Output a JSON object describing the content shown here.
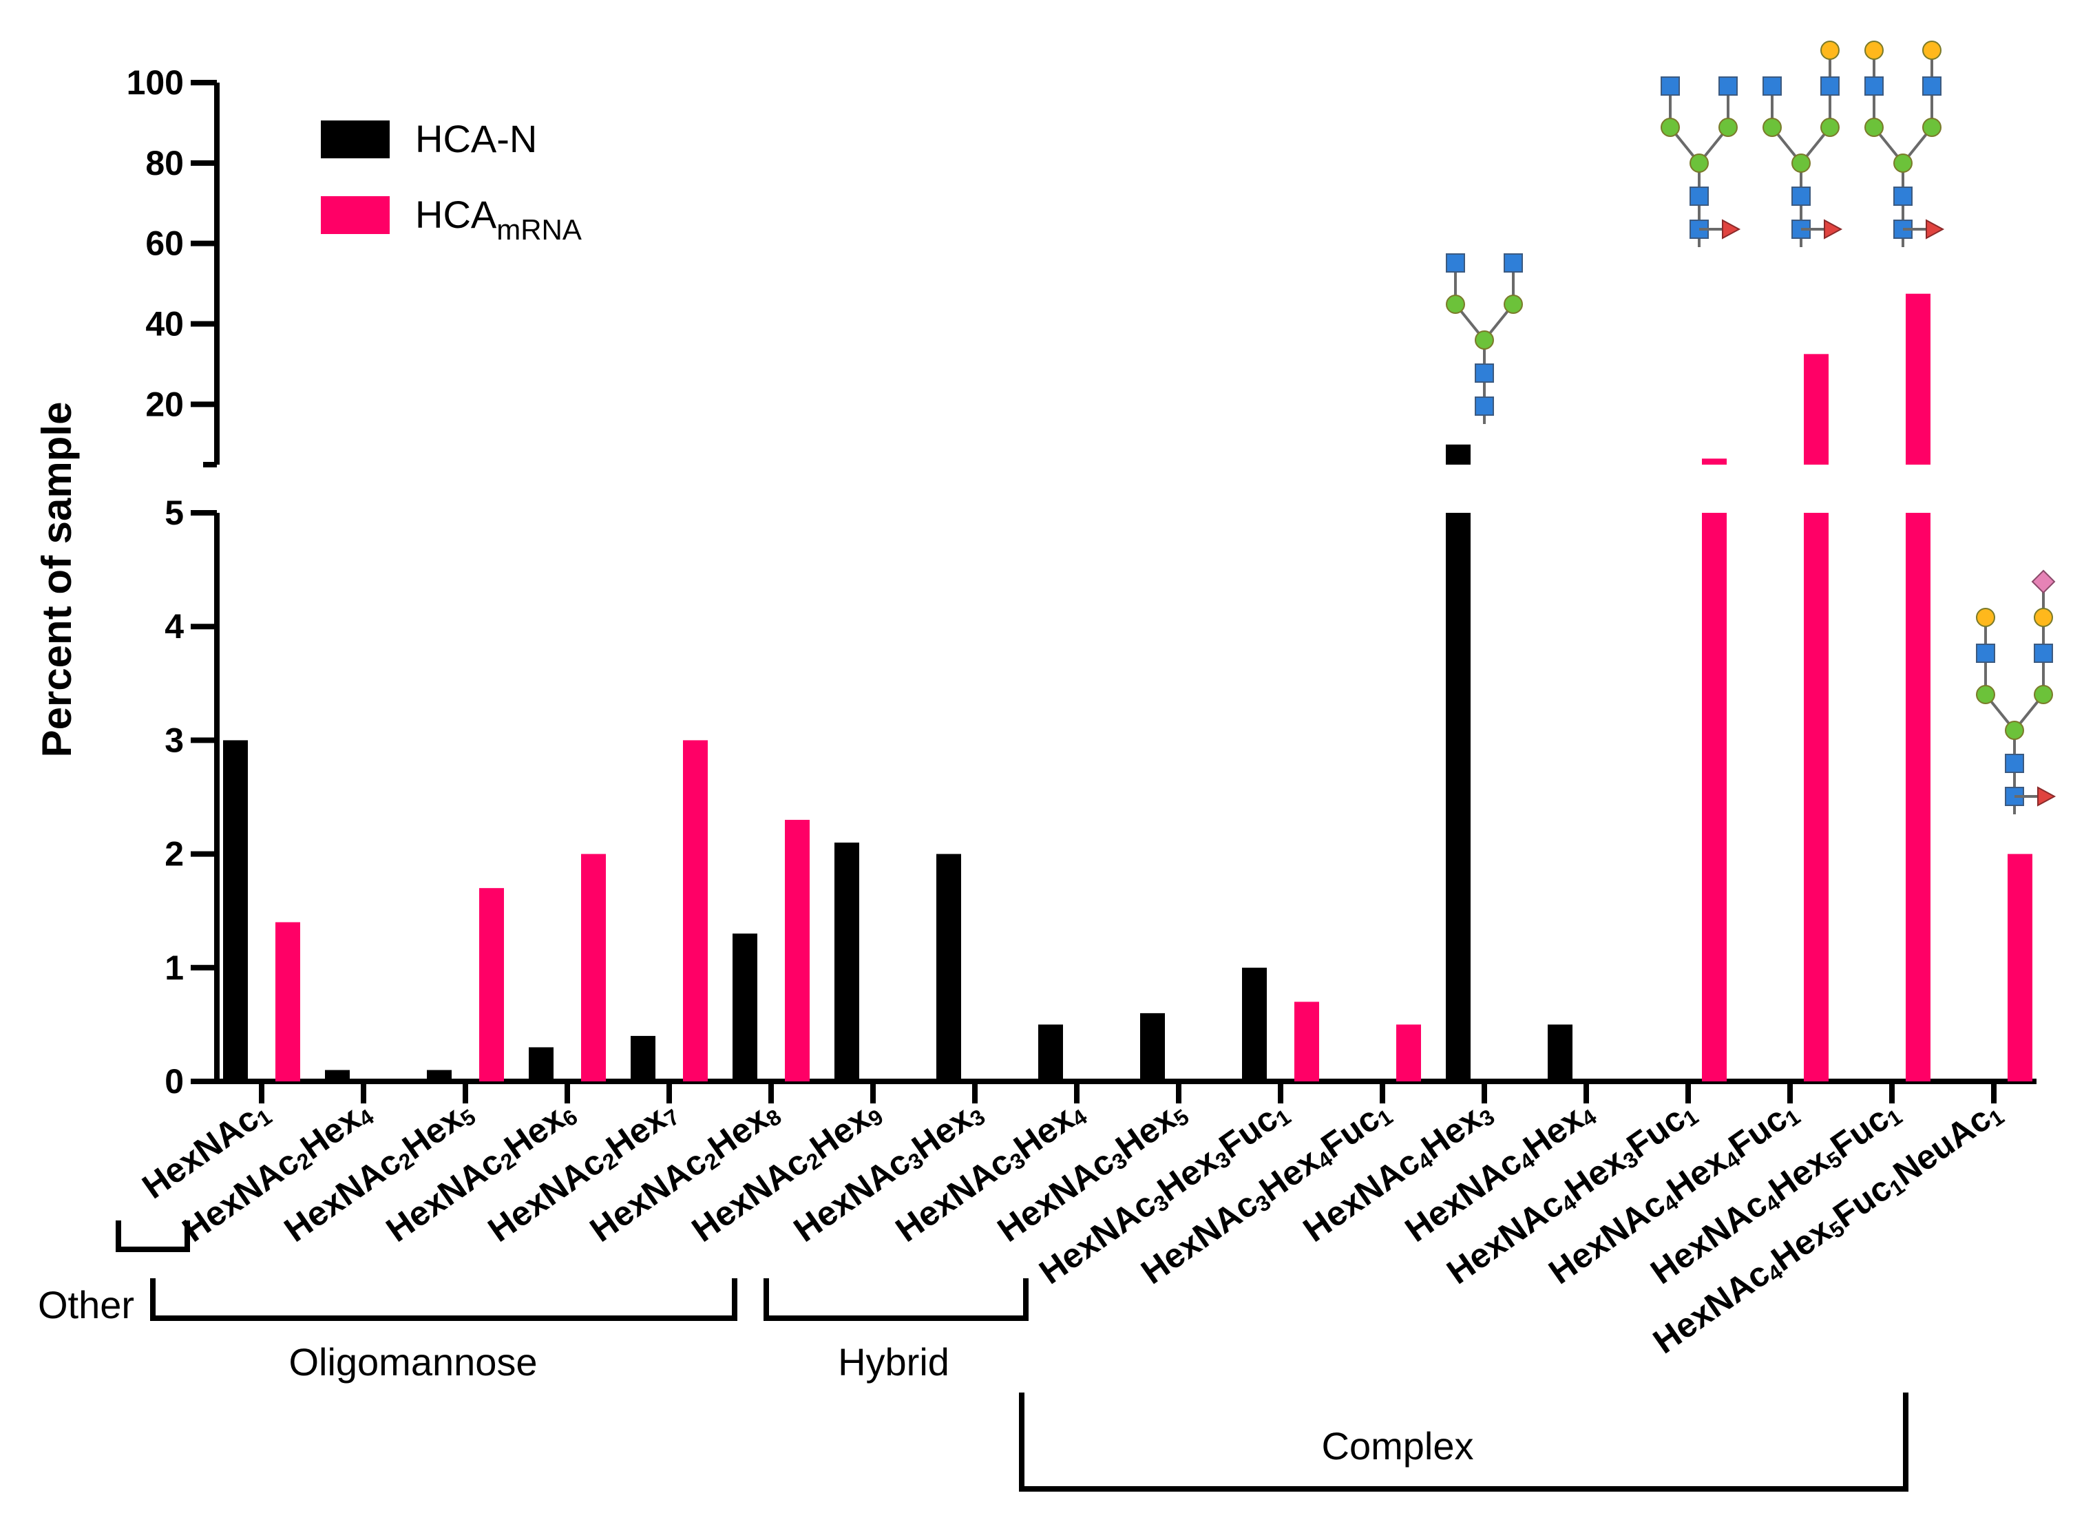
{
  "chart_data": {
    "type": "bar",
    "ylabel": "Percent of sample",
    "ylim_lower": [
      0,
      5
    ],
    "ylim_upper": [
      5,
      100
    ],
    "yticks_lower": [
      "0",
      "1",
      "2",
      "3",
      "4",
      "5"
    ],
    "yticks_upper": [
      "20",
      "40",
      "60",
      "80",
      "100"
    ],
    "legend": {
      "position": "top-left",
      "entries": [
        {
          "series": "HCA-N",
          "color": "#000000",
          "parts": [
            [
              "HCA-N",
              ""
            ]
          ]
        },
        {
          "series": "HCAmRNA",
          "color": "#ff0066",
          "parts": [
            [
              "HCA",
              ""
            ],
            [
              "mRNA",
              "sub"
            ]
          ]
        }
      ]
    },
    "categories": [
      {
        "name": "HexNAc1",
        "parts": [
          [
            "HexNAc",
            ""
          ],
          [
            "1",
            "sub"
          ]
        ]
      },
      {
        "name": "HexNAc2Hex4",
        "parts": [
          [
            "HexNAc",
            ""
          ],
          [
            "2",
            "sub"
          ],
          [
            "Hex",
            ""
          ],
          [
            "4",
            "sub"
          ]
        ]
      },
      {
        "name": "HexNAc2Hex5",
        "parts": [
          [
            "HexNAc",
            ""
          ],
          [
            "2",
            "sub"
          ],
          [
            "Hex",
            ""
          ],
          [
            "5",
            "sub"
          ]
        ]
      },
      {
        "name": "HexNAc2Hex6",
        "parts": [
          [
            "HexNAc",
            ""
          ],
          [
            "2",
            "sub"
          ],
          [
            "Hex",
            ""
          ],
          [
            "6",
            "sub"
          ]
        ]
      },
      {
        "name": "HexNAc2Hex7",
        "parts": [
          [
            "HexNAc",
            ""
          ],
          [
            "2",
            "sub"
          ],
          [
            "Hex",
            ""
          ],
          [
            "7",
            "sub"
          ]
        ]
      },
      {
        "name": "HexNAc2Hex8",
        "parts": [
          [
            "HexNAc",
            ""
          ],
          [
            "2",
            "sub"
          ],
          [
            "Hex",
            ""
          ],
          [
            "8",
            "sub"
          ]
        ]
      },
      {
        "name": "HexNAc2Hex9",
        "parts": [
          [
            "HexNAc",
            ""
          ],
          [
            "2",
            "sub"
          ],
          [
            "Hex",
            ""
          ],
          [
            "9",
            "sub"
          ]
        ]
      },
      {
        "name": "HexNAc3Hex3",
        "parts": [
          [
            "HexNAc",
            ""
          ],
          [
            "3",
            "sub"
          ],
          [
            "Hex",
            ""
          ],
          [
            "3",
            "sub"
          ]
        ]
      },
      {
        "name": "HexNAc3Hex4",
        "parts": [
          [
            "HexNAc",
            ""
          ],
          [
            "3",
            "sub"
          ],
          [
            "Hex",
            ""
          ],
          [
            "4",
            "sub"
          ]
        ]
      },
      {
        "name": "HexNAc3Hex5",
        "parts": [
          [
            "HexNAc",
            ""
          ],
          [
            "3",
            "sub"
          ],
          [
            "Hex",
            ""
          ],
          [
            "5",
            "sub"
          ]
        ]
      },
      {
        "name": "HexNAc3Hex3Fuc1",
        "parts": [
          [
            "HexNAc",
            ""
          ],
          [
            "3",
            "sub"
          ],
          [
            "Hex",
            ""
          ],
          [
            "3",
            "sub"
          ],
          [
            "Fuc",
            ""
          ],
          [
            "1",
            "sub"
          ]
        ]
      },
      {
        "name": "HexNAc3Hex4Fuc1",
        "parts": [
          [
            "HexNAc",
            ""
          ],
          [
            "3",
            "sub"
          ],
          [
            "Hex",
            ""
          ],
          [
            "4",
            "sub"
          ],
          [
            "Fuc",
            ""
          ],
          [
            "1",
            "sub"
          ]
        ]
      },
      {
        "name": "HexNAc4Hex3",
        "parts": [
          [
            "HexNAc",
            ""
          ],
          [
            "4",
            "sub"
          ],
          [
            "Hex",
            ""
          ],
          [
            "3",
            "sub"
          ]
        ]
      },
      {
        "name": "HexNAc4Hex4",
        "parts": [
          [
            "HexNAc",
            ""
          ],
          [
            "4",
            "sub"
          ],
          [
            "Hex",
            ""
          ],
          [
            "4",
            "sub"
          ]
        ]
      },
      {
        "name": "HexNAc4Hex3Fuc1",
        "parts": [
          [
            "HexNAc",
            ""
          ],
          [
            "4",
            "sub"
          ],
          [
            "Hex",
            ""
          ],
          [
            "3",
            "sub"
          ],
          [
            "Fuc",
            ""
          ],
          [
            "1",
            "sub"
          ]
        ]
      },
      {
        "name": "HexNAc4Hex4Fuc1",
        "parts": [
          [
            "HexNAc",
            ""
          ],
          [
            "4",
            "sub"
          ],
          [
            "Hex",
            ""
          ],
          [
            "4",
            "sub"
          ],
          [
            "Fuc",
            ""
          ],
          [
            "1",
            "sub"
          ]
        ]
      },
      {
        "name": "HexNAc4Hex5Fuc1",
        "parts": [
          [
            "HexNAc",
            ""
          ],
          [
            "4",
            "sub"
          ],
          [
            "Hex",
            ""
          ],
          [
            "5",
            "sub"
          ],
          [
            "Fuc",
            ""
          ],
          [
            "1",
            "sub"
          ]
        ]
      },
      {
        "name": "HexNAc4Hex5Fuc1NeuAc1",
        "parts": [
          [
            "HexNAc",
            ""
          ],
          [
            "4",
            "sub"
          ],
          [
            "Hex",
            ""
          ],
          [
            "5",
            "sub"
          ],
          [
            "Fuc",
            ""
          ],
          [
            "1",
            "sub"
          ],
          [
            "NeuAc",
            ""
          ],
          [
            "1",
            "sub"
          ]
        ]
      }
    ],
    "series": [
      {
        "name": "HCA-N",
        "color": "#000000",
        "values": [
          3.0,
          0.1,
          0.1,
          0.3,
          0.4,
          1.3,
          2.1,
          2.0,
          0.5,
          0.6,
          1.0,
          0,
          10,
          0.5,
          0,
          0,
          0,
          0
        ]
      },
      {
        "name": "HCAmRNA",
        "color": "#ff0066",
        "values": [
          1.4,
          0,
          1.7,
          2.0,
          3.0,
          2.3,
          0,
          0,
          0,
          0,
          0.7,
          0.5,
          0,
          0,
          6.5,
          32.5,
          47.5,
          2.0
        ]
      }
    ],
    "groups": [
      {
        "label": "Other",
        "from": 0,
        "to": 0
      },
      {
        "label": "Oligomannose",
        "from": 1,
        "to": 5
      },
      {
        "label": "Hybrid",
        "from": 6,
        "to": 7
      },
      {
        "label": "Complex",
        "from": 8,
        "to": 17
      }
    ],
    "glycan_annotations": [
      {
        "category": "HexNAc4Hex3",
        "structure": "biantennary"
      },
      {
        "category": "HexNAc4Hex3Fuc1",
        "structure": "biantennary-core-fucose"
      },
      {
        "category": "HexNAc4Hex4Fuc1",
        "structure": "biantennary-core-fucose-1-galactose"
      },
      {
        "category": "HexNAc4Hex5Fuc1",
        "structure": "biantennary-core-fucose-2-galactose"
      },
      {
        "category": "HexNAc4Hex5Fuc1NeuAc1",
        "structure": "biantennary-core-fucose-2-galactose-1-sialic-acid"
      }
    ],
    "symbol_colors": {
      "HexNAc": "#2f7fd8",
      "Man": "#6cc23a",
      "Gal": "#ffb81c",
      "Fuc": "#e0433f",
      "NeuAc": "#e683b6"
    }
  }
}
